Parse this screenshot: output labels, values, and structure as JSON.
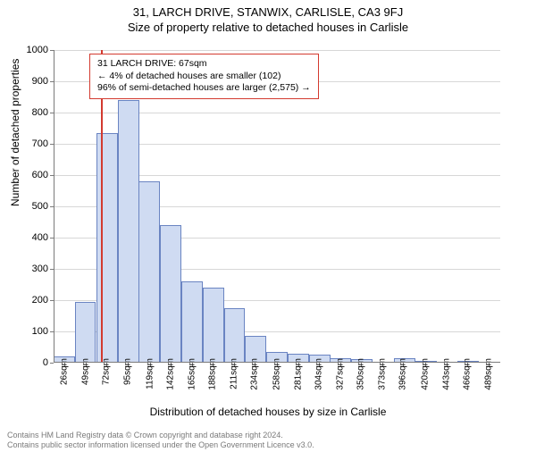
{
  "title": "31, LARCH DRIVE, STANWIX, CARLISLE, CA3 9FJ",
  "subtitle": "Size of property relative to detached houses in Carlisle",
  "ylabel": "Number of detached properties",
  "xlabel": "Distribution of detached houses by size in Carlisle",
  "infobox": {
    "line1": "31 LARCH DRIVE: 67sqm",
    "line2": "← 4% of detached houses are smaller (102)",
    "line3": "96% of semi-detached houses are larger (2,575) →"
  },
  "footer": {
    "line1": "Contains HM Land Registry data © Crown copyright and database right 2024.",
    "line2": "Contains public sector information licensed under the Open Government Licence v3.0."
  },
  "chart": {
    "type": "histogram",
    "ylim": [
      0,
      1000
    ],
    "ytick_step": 100,
    "bar_color": "#cfdbf2",
    "bar_border_color": "#6a84c2",
    "grid_color": "#d7d7d7",
    "axis_color": "#7a7a7a",
    "marker_color": "#d33a2f",
    "marker_value": 67,
    "background_color": "#ffffff",
    "title_fontsize": 13,
    "label_fontsize": 12,
    "tick_fontsize": 11,
    "x_min": 14,
    "x_max": 502,
    "bar_width_units": 23.3,
    "xticks": [
      26,
      49,
      72,
      95,
      119,
      142,
      165,
      188,
      211,
      234,
      258,
      281,
      304,
      327,
      350,
      373,
      396,
      420,
      443,
      466,
      489
    ],
    "xtick_suffix": "sqm",
    "bins": [
      {
        "x": 14,
        "v": 20
      },
      {
        "x": 37,
        "v": 195
      },
      {
        "x": 61,
        "v": 735
      },
      {
        "x": 84,
        "v": 840
      },
      {
        "x": 107,
        "v": 580
      },
      {
        "x": 130,
        "v": 440
      },
      {
        "x": 154,
        "v": 260
      },
      {
        "x": 177,
        "v": 240
      },
      {
        "x": 200,
        "v": 175
      },
      {
        "x": 223,
        "v": 85
      },
      {
        "x": 246,
        "v": 35
      },
      {
        "x": 270,
        "v": 30
      },
      {
        "x": 293,
        "v": 25
      },
      {
        "x": 316,
        "v": 15
      },
      {
        "x": 339,
        "v": 12
      },
      {
        "x": 363,
        "v": 0
      },
      {
        "x": 386,
        "v": 15
      },
      {
        "x": 409,
        "v": 5
      },
      {
        "x": 432,
        "v": 0
      },
      {
        "x": 455,
        "v": 5
      },
      {
        "x": 479,
        "v": 0
      }
    ]
  }
}
